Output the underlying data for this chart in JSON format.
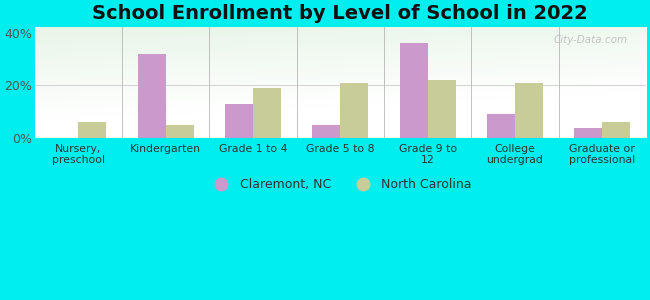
{
  "title": "School Enrollment by Level of School in 2022",
  "categories": [
    "Nursery,\npreschool",
    "Kindergarten",
    "Grade 1 to 4",
    "Grade 5 to 8",
    "Grade 9 to\n12",
    "College\nundergrad",
    "Graduate or\nprofessional"
  ],
  "claremont": [
    0,
    32,
    13,
    5,
    36,
    9,
    4
  ],
  "nc": [
    6,
    5,
    19,
    21,
    22,
    21,
    6
  ],
  "claremont_color": "#cc99cc",
  "nc_color": "#c8cc99",
  "ylim": [
    0,
    42
  ],
  "yticks": [
    0,
    20,
    40
  ],
  "ytick_labels": [
    "0%",
    "20%",
    "40%"
  ],
  "background_color": "#00eeee",
  "title_fontsize": 14,
  "legend_label1": "Claremont, NC",
  "legend_label2": "North Carolina",
  "watermark": "City-Data.com",
  "bar_width": 0.32
}
